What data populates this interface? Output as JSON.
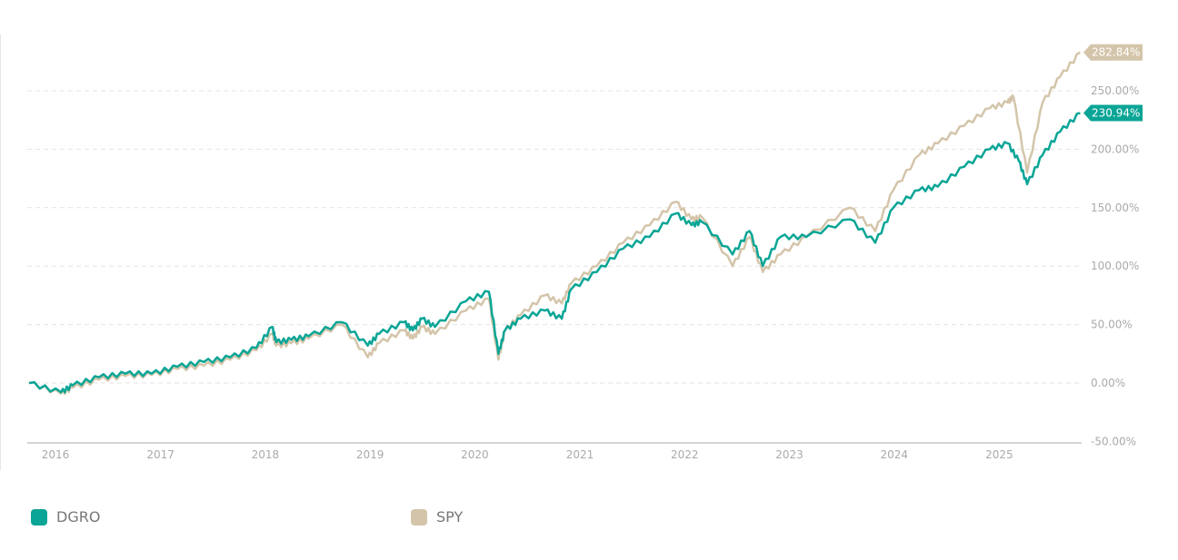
{
  "chart_data": {
    "type": "line",
    "x_tick_labels": [
      "2016",
      "2017",
      "2018",
      "2019",
      "2020",
      "2021",
      "2022",
      "2023",
      "2024",
      "2025"
    ],
    "y_tick_labels": [
      "-50.00%",
      "0.00%",
      "50.00%",
      "100.00%",
      "150.00%",
      "200.00%",
      "250.00%"
    ],
    "y_ticks": [
      -50,
      0,
      50,
      100,
      150,
      200,
      250
    ],
    "ylim": [
      -50,
      260
    ],
    "xlim": [
      "2015-10-01",
      "2025-10-15"
    ],
    "grid": "horizontal-dashed",
    "legend_placement": "bottom-left",
    "series": [
      {
        "name": "DGRO",
        "color": "#0aa596",
        "end_label": "230.94%",
        "points": [
          [
            "2015-10-01",
            0
          ],
          [
            "2016-01-20",
            -8
          ],
          [
            "2016-03-01",
            -2
          ],
          [
            "2016-06-01",
            5
          ],
          [
            "2016-09-01",
            8
          ],
          [
            "2016-12-01",
            8
          ],
          [
            "2017-03-01",
            14
          ],
          [
            "2017-06-01",
            18
          ],
          [
            "2017-09-01",
            22
          ],
          [
            "2017-12-01",
            30
          ],
          [
            "2018-01-25",
            48
          ],
          [
            "2018-02-08",
            35
          ],
          [
            "2018-04-01",
            37
          ],
          [
            "2018-06-01",
            40
          ],
          [
            "2018-09-25",
            52
          ],
          [
            "2018-12-24",
            32
          ],
          [
            "2019-02-01",
            42
          ],
          [
            "2019-04-30",
            52
          ],
          [
            "2019-05-30",
            45
          ],
          [
            "2019-07-01",
            55
          ],
          [
            "2019-08-15",
            48
          ],
          [
            "2019-12-01",
            70
          ],
          [
            "2020-02-19",
            78
          ],
          [
            "2020-03-23",
            25
          ],
          [
            "2020-04-15",
            45
          ],
          [
            "2020-06-08",
            55
          ],
          [
            "2020-09-01",
            62
          ],
          [
            "2020-10-30",
            55
          ],
          [
            "2020-12-01",
            80
          ],
          [
            "2021-03-01",
            95
          ],
          [
            "2021-06-01",
            115
          ],
          [
            "2021-09-01",
            125
          ],
          [
            "2021-12-01",
            145
          ],
          [
            "2022-01-25",
            135
          ],
          [
            "2022-03-01",
            138
          ],
          [
            "2022-06-17",
            110
          ],
          [
            "2022-08-15",
            130
          ],
          [
            "2022-09-30",
            100
          ],
          [
            "2022-12-01",
            125
          ],
          [
            "2023-03-01",
            125
          ],
          [
            "2023-07-31",
            140
          ],
          [
            "2023-10-27",
            120
          ],
          [
            "2023-12-29",
            150
          ],
          [
            "2024-03-28",
            165
          ],
          [
            "2024-06-01",
            168
          ],
          [
            "2024-09-01",
            185
          ],
          [
            "2024-11-29",
            200
          ],
          [
            "2025-01-30",
            205
          ],
          [
            "2025-03-10",
            190
          ],
          [
            "2025-04-08",
            170
          ],
          [
            "2025-06-01",
            195
          ],
          [
            "2025-08-01",
            215
          ],
          [
            "2025-10-10",
            230.94
          ]
        ]
      },
      {
        "name": "SPY",
        "color": "#d4c5aa",
        "end_label": "282.84%",
        "points": [
          [
            "2015-10-01",
            0
          ],
          [
            "2016-01-20",
            -9
          ],
          [
            "2016-03-01",
            -4
          ],
          [
            "2016-06-01",
            3
          ],
          [
            "2016-09-01",
            6
          ],
          [
            "2016-12-01",
            7
          ],
          [
            "2017-03-01",
            12
          ],
          [
            "2017-06-01",
            15
          ],
          [
            "2017-09-01",
            20
          ],
          [
            "2017-12-01",
            28
          ],
          [
            "2018-01-25",
            42
          ],
          [
            "2018-02-08",
            32
          ],
          [
            "2018-04-01",
            34
          ],
          [
            "2018-06-01",
            38
          ],
          [
            "2018-09-25",
            50
          ],
          [
            "2018-12-24",
            22
          ],
          [
            "2019-02-01",
            34
          ],
          [
            "2019-04-30",
            45
          ],
          [
            "2019-05-30",
            38
          ],
          [
            "2019-07-01",
            48
          ],
          [
            "2019-08-15",
            42
          ],
          [
            "2019-12-01",
            62
          ],
          [
            "2020-02-19",
            72
          ],
          [
            "2020-03-23",
            20
          ],
          [
            "2020-04-15",
            45
          ],
          [
            "2020-06-08",
            58
          ],
          [
            "2020-09-01",
            75
          ],
          [
            "2020-10-30",
            68
          ],
          [
            "2020-12-01",
            85
          ],
          [
            "2021-03-01",
            100
          ],
          [
            "2021-06-01",
            120
          ],
          [
            "2021-09-01",
            135
          ],
          [
            "2021-12-01",
            155
          ],
          [
            "2022-01-25",
            140
          ],
          [
            "2022-03-01",
            142
          ],
          [
            "2022-06-17",
            100
          ],
          [
            "2022-08-15",
            125
          ],
          [
            "2022-09-30",
            95
          ],
          [
            "2022-12-01",
            110
          ],
          [
            "2023-03-01",
            125
          ],
          [
            "2023-07-31",
            150
          ],
          [
            "2023-10-27",
            130
          ],
          [
            "2023-12-29",
            165
          ],
          [
            "2024-03-28",
            195
          ],
          [
            "2024-06-01",
            205
          ],
          [
            "2024-09-01",
            220
          ],
          [
            "2024-11-29",
            235
          ],
          [
            "2025-01-30",
            240
          ],
          [
            "2025-02-19",
            245
          ],
          [
            "2025-04-08",
            180
          ],
          [
            "2025-06-01",
            240
          ],
          [
            "2025-08-01",
            262
          ],
          [
            "2025-10-10",
            282.84
          ]
        ]
      }
    ]
  }
}
